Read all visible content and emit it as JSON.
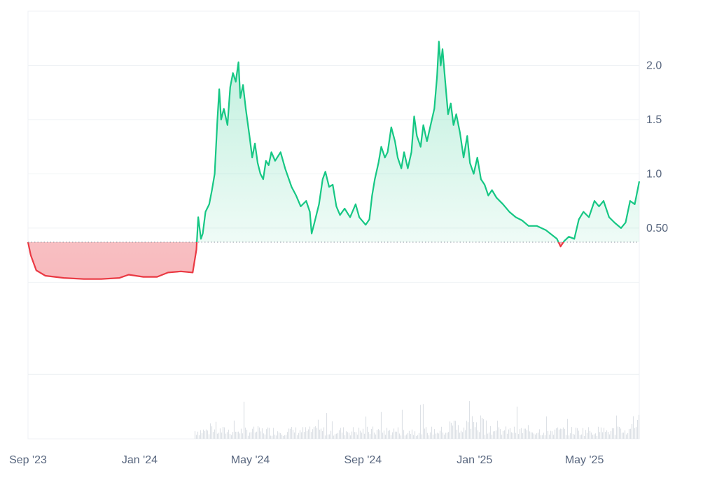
{
  "chart_data": {
    "type": "area",
    "title": "",
    "xlabel": "",
    "ylabel": "",
    "baseline": 0.37,
    "ylim": [
      -0.85,
      2.5
    ],
    "y_ticks": [
      {
        "value": 0.5,
        "label": "0.50"
      },
      {
        "value": 1.0,
        "label": "1.0"
      },
      {
        "value": 1.5,
        "label": "1.5"
      },
      {
        "value": 2.0,
        "label": "2.0"
      }
    ],
    "x_range": [
      "2023-09-01",
      "2025-06-30"
    ],
    "x_ticks": [
      {
        "date": "2023-09-01",
        "label": "Sep '23"
      },
      {
        "date": "2024-01-01",
        "label": "Jan '24"
      },
      {
        "date": "2024-05-01",
        "label": "May '24"
      },
      {
        "date": "2024-09-01",
        "label": "Sep '24"
      },
      {
        "date": "2025-01-01",
        "label": "Jan '25"
      },
      {
        "date": "2025-05-01",
        "label": "May '25"
      }
    ],
    "colors": {
      "up": "#16c784",
      "down": "#ea3943",
      "volume": "#dde1e6",
      "grid": "#eff2f5"
    },
    "series": [
      {
        "points": [
          [
            "2023-09-01",
            0.37
          ],
          [
            "2023-09-04",
            0.25
          ],
          [
            "2023-09-10",
            0.11
          ],
          [
            "2023-09-20",
            0.06
          ],
          [
            "2023-10-10",
            0.04
          ],
          [
            "2023-11-01",
            0.03
          ],
          [
            "2023-11-20",
            0.03
          ],
          [
            "2023-12-10",
            0.04
          ],
          [
            "2023-12-20",
            0.07
          ],
          [
            "2024-01-05",
            0.05
          ],
          [
            "2024-01-20",
            0.05
          ],
          [
            "2024-02-01",
            0.09
          ],
          [
            "2024-02-15",
            0.1
          ],
          [
            "2024-02-28",
            0.09
          ],
          [
            "2024-03-03",
            0.3
          ],
          [
            "2024-03-05",
            0.6
          ],
          [
            "2024-03-08",
            0.4
          ],
          [
            "2024-03-10",
            0.45
          ],
          [
            "2024-03-13",
            0.65
          ],
          [
            "2024-03-17",
            0.72
          ],
          [
            "2024-03-20",
            0.85
          ],
          [
            "2024-03-23",
            1.0
          ],
          [
            "2024-03-26",
            1.5
          ],
          [
            "2024-03-28",
            1.78
          ],
          [
            "2024-03-30",
            1.5
          ],
          [
            "2024-04-02",
            1.6
          ],
          [
            "2024-04-06",
            1.45
          ],
          [
            "2024-04-09",
            1.8
          ],
          [
            "2024-04-12",
            1.93
          ],
          [
            "2024-04-15",
            1.85
          ],
          [
            "2024-04-18",
            2.03
          ],
          [
            "2024-04-20",
            1.7
          ],
          [
            "2024-04-23",
            1.82
          ],
          [
            "2024-04-26",
            1.6
          ],
          [
            "2024-04-30",
            1.35
          ],
          [
            "2024-05-03",
            1.15
          ],
          [
            "2024-05-06",
            1.28
          ],
          [
            "2024-05-09",
            1.1
          ],
          [
            "2024-05-12",
            1.0
          ],
          [
            "2024-05-15",
            0.95
          ],
          [
            "2024-05-18",
            1.12
          ],
          [
            "2024-05-21",
            1.08
          ],
          [
            "2024-05-24",
            1.2
          ],
          [
            "2024-05-28",
            1.12
          ],
          [
            "2024-06-03",
            1.2
          ],
          [
            "2024-06-08",
            1.05
          ],
          [
            "2024-06-15",
            0.88
          ],
          [
            "2024-06-20",
            0.8
          ],
          [
            "2024-06-25",
            0.7
          ],
          [
            "2024-07-01",
            0.75
          ],
          [
            "2024-07-05",
            0.65
          ],
          [
            "2024-07-07",
            0.45
          ],
          [
            "2024-07-10",
            0.55
          ],
          [
            "2024-07-15",
            0.72
          ],
          [
            "2024-07-19",
            0.95
          ],
          [
            "2024-07-22",
            1.02
          ],
          [
            "2024-07-26",
            0.88
          ],
          [
            "2024-07-30",
            0.9
          ],
          [
            "2024-08-03",
            0.7
          ],
          [
            "2024-08-07",
            0.62
          ],
          [
            "2024-08-12",
            0.68
          ],
          [
            "2024-08-18",
            0.6
          ],
          [
            "2024-08-24",
            0.72
          ],
          [
            "2024-08-28",
            0.6
          ],
          [
            "2024-09-04",
            0.53
          ],
          [
            "2024-09-08",
            0.58
          ],
          [
            "2024-09-11",
            0.8
          ],
          [
            "2024-09-14",
            0.95
          ],
          [
            "2024-09-18",
            1.1
          ],
          [
            "2024-09-21",
            1.25
          ],
          [
            "2024-09-25",
            1.15
          ],
          [
            "2024-09-28",
            1.2
          ],
          [
            "2024-10-02",
            1.43
          ],
          [
            "2024-10-06",
            1.3
          ],
          [
            "2024-10-09",
            1.15
          ],
          [
            "2024-10-13",
            1.05
          ],
          [
            "2024-10-16",
            1.2
          ],
          [
            "2024-10-20",
            1.05
          ],
          [
            "2024-10-24",
            1.2
          ],
          [
            "2024-10-27",
            1.53
          ],
          [
            "2024-10-30",
            1.35
          ],
          [
            "2024-11-03",
            1.25
          ],
          [
            "2024-11-06",
            1.45
          ],
          [
            "2024-11-10",
            1.3
          ],
          [
            "2024-11-14",
            1.45
          ],
          [
            "2024-11-18",
            1.6
          ],
          [
            "2024-11-21",
            1.9
          ],
          [
            "2024-11-23",
            2.22
          ],
          [
            "2024-11-25",
            2.0
          ],
          [
            "2024-11-27",
            2.15
          ],
          [
            "2024-11-30",
            1.85
          ],
          [
            "2024-12-03",
            1.55
          ],
          [
            "2024-12-06",
            1.65
          ],
          [
            "2024-12-09",
            1.45
          ],
          [
            "2024-12-12",
            1.55
          ],
          [
            "2024-12-16",
            1.38
          ],
          [
            "2024-12-20",
            1.15
          ],
          [
            "2024-12-24",
            1.35
          ],
          [
            "2024-12-27",
            1.1
          ],
          [
            "2024-12-31",
            1.0
          ],
          [
            "2025-01-04",
            1.15
          ],
          [
            "2025-01-08",
            0.95
          ],
          [
            "2025-01-12",
            0.9
          ],
          [
            "2025-01-16",
            0.8
          ],
          [
            "2025-01-20",
            0.85
          ],
          [
            "2025-01-25",
            0.78
          ],
          [
            "2025-02-01",
            0.72
          ],
          [
            "2025-02-08",
            0.65
          ],
          [
            "2025-02-15",
            0.6
          ],
          [
            "2025-02-22",
            0.57
          ],
          [
            "2025-03-01",
            0.52
          ],
          [
            "2025-03-10",
            0.52
          ],
          [
            "2025-03-20",
            0.48
          ],
          [
            "2025-04-01",
            0.4
          ],
          [
            "2025-04-05",
            0.33
          ],
          [
            "2025-04-09",
            0.38
          ],
          [
            "2025-04-14",
            0.42
          ],
          [
            "2025-04-20",
            0.4
          ],
          [
            "2025-04-25",
            0.58
          ],
          [
            "2025-04-30",
            0.65
          ],
          [
            "2025-05-06",
            0.6
          ],
          [
            "2025-05-12",
            0.75
          ],
          [
            "2025-05-17",
            0.7
          ],
          [
            "2025-05-22",
            0.75
          ],
          [
            "2025-05-28",
            0.6
          ],
          [
            "2025-06-03",
            0.55
          ],
          [
            "2025-06-10",
            0.5
          ],
          [
            "2025-06-15",
            0.55
          ],
          [
            "2025-06-20",
            0.75
          ],
          [
            "2025-06-25",
            0.72
          ],
          [
            "2025-06-30",
            0.93
          ]
        ]
      }
    ]
  }
}
